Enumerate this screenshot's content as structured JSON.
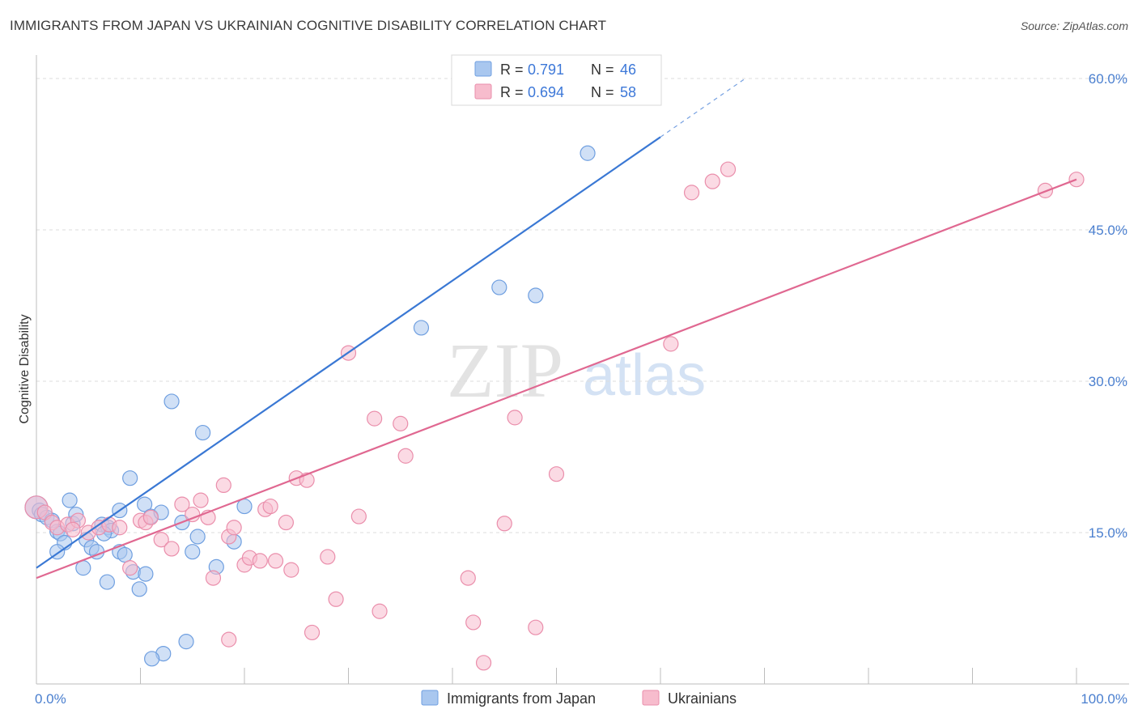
{
  "title": "IMMIGRANTS FROM JAPAN VS UKRAINIAN COGNITIVE DISABILITY CORRELATION CHART",
  "source": "Source: ZipAtlas.com",
  "watermark": {
    "zip": "ZIP",
    "atlas": "atlas"
  },
  "colors": {
    "blue": "#3a78d4",
    "blue_fill": "#a9c7ef",
    "blue_stroke": "#6f9fe0",
    "pink": "#e06891",
    "pink_fill": "#f7bccd",
    "pink_stroke": "#ea8eab",
    "grid": "#dedede",
    "axis_label": "#4a7fcf"
  },
  "chart_data": {
    "type": "scatter",
    "title": "IMMIGRANTS FROM JAPAN VS UKRAINIAN COGNITIVE DISABILITY CORRELATION CHART",
    "xlabel": "",
    "ylabel": "Cognitive Disability",
    "xlim": [
      0,
      100
    ],
    "ylim": [
      0,
      63
    ],
    "x_tick_labels": [
      {
        "value": 0,
        "label": "0.0%"
      },
      {
        "value": 100,
        "label": "100.0%"
      }
    ],
    "y_tick_labels": [
      {
        "value": 15,
        "label": "15.0%"
      },
      {
        "value": 30,
        "label": "30.0%"
      },
      {
        "value": 45,
        "label": "45.0%"
      },
      {
        "value": 60,
        "label": "60.0%"
      }
    ],
    "legend": [
      {
        "series": "Immigrants from Japan",
        "r_label": "R =",
        "r_value": "0.791",
        "n_label": "N =",
        "n_value": "46"
      },
      {
        "series": "Ukrainians",
        "r_label": "R =",
        "r_value": "0.694",
        "n_label": "N =",
        "n_value": "58"
      }
    ],
    "series": [
      {
        "name": "Immigrants from Japan",
        "color": "blue",
        "trend": {
          "x0": 0,
          "y0": 11.5,
          "x1": 60,
          "y1": 54.2,
          "dash_to_x": 68
        },
        "points": [
          [
            0,
            17.5
          ],
          [
            0.3,
            17.2
          ],
          [
            0.5,
            16.8
          ],
          [
            1,
            16.5
          ],
          [
            1.5,
            16.2
          ],
          [
            2,
            15.1
          ],
          [
            2.3,
            14.9
          ],
          [
            2.7,
            14.0
          ],
          [
            3.2,
            18.2
          ],
          [
            3.5,
            15.9
          ],
          [
            4.5,
            11.5
          ],
          [
            3.8,
            16.8
          ],
          [
            4.8,
            14.3
          ],
          [
            5.3,
            13.5
          ],
          [
            5.8,
            13.1
          ],
          [
            6.3,
            15.8
          ],
          [
            6.8,
            10.1
          ],
          [
            6.9,
            15.5
          ],
          [
            7.2,
            15.2
          ],
          [
            8,
            17.2
          ],
          [
            8,
            13.1
          ],
          [
            8.5,
            12.8
          ],
          [
            9.3,
            11.1
          ],
          [
            9,
            20.4
          ],
          [
            9.9,
            9.4
          ],
          [
            10.5,
            10.9
          ],
          [
            10.4,
            17.8
          ],
          [
            11,
            16.6
          ],
          [
            12,
            17.0
          ],
          [
            12.2,
            3.0
          ],
          [
            13,
            28.0
          ],
          [
            14,
            16.0
          ],
          [
            15,
            13.1
          ],
          [
            15.5,
            14.6
          ],
          [
            16,
            24.9
          ],
          [
            17.3,
            11.6
          ],
          [
            19,
            14.1
          ],
          [
            20,
            17.6
          ],
          [
            14.4,
            4.2
          ],
          [
            11.1,
            2.5
          ],
          [
            37,
            35.3
          ],
          [
            44.5,
            39.3
          ],
          [
            48,
            38.5
          ],
          [
            53,
            52.6
          ],
          [
            6.5,
            14.9
          ],
          [
            2,
            13.1
          ]
        ]
      },
      {
        "name": "Ukrainians",
        "color": "pink",
        "trend": {
          "x0": 0,
          "y0": 10.5,
          "x1": 100,
          "y1": 50.0
        },
        "points": [
          [
            0,
            17.5
          ],
          [
            0.8,
            17.0
          ],
          [
            1.5,
            16.0
          ],
          [
            2,
            15.5
          ],
          [
            3,
            15.8
          ],
          [
            4,
            16.2
          ],
          [
            5,
            15.0
          ],
          [
            6,
            15.5
          ],
          [
            7,
            15.8
          ],
          [
            8,
            15.5
          ],
          [
            9,
            11.5
          ],
          [
            10,
            16.2
          ],
          [
            10.5,
            16.0
          ],
          [
            11,
            16.5
          ],
          [
            12,
            14.3
          ],
          [
            13,
            13.4
          ],
          [
            14,
            17.8
          ],
          [
            15,
            16.8
          ],
          [
            15.8,
            18.2
          ],
          [
            16.5,
            16.5
          ],
          [
            17,
            10.5
          ],
          [
            18,
            19.7
          ],
          [
            18.5,
            14.6
          ],
          [
            19,
            15.5
          ],
          [
            20,
            11.8
          ],
          [
            20.5,
            12.5
          ],
          [
            21.5,
            12.2
          ],
          [
            22,
            17.3
          ],
          [
            22.5,
            17.6
          ],
          [
            23,
            12.2
          ],
          [
            24,
            16.0
          ],
          [
            24.5,
            11.3
          ],
          [
            25,
            20.4
          ],
          [
            26,
            20.2
          ],
          [
            26.5,
            5.1
          ],
          [
            28,
            12.6
          ],
          [
            28.8,
            8.4
          ],
          [
            30,
            32.8
          ],
          [
            31,
            16.6
          ],
          [
            32.5,
            26.3
          ],
          [
            33,
            7.2
          ],
          [
            35,
            25.8
          ],
          [
            35.5,
            22.6
          ],
          [
            41.5,
            10.5
          ],
          [
            42,
            6.1
          ],
          [
            43,
            2.1
          ],
          [
            45,
            15.9
          ],
          [
            46,
            26.4
          ],
          [
            48,
            5.6
          ],
          [
            50,
            20.8
          ],
          [
            61,
            33.7
          ],
          [
            63,
            48.7
          ],
          [
            65,
            49.8
          ],
          [
            66.5,
            51.0
          ],
          [
            97,
            48.9
          ],
          [
            100,
            50.0
          ],
          [
            18.5,
            4.4
          ],
          [
            3.5,
            15.3
          ]
        ]
      }
    ]
  }
}
